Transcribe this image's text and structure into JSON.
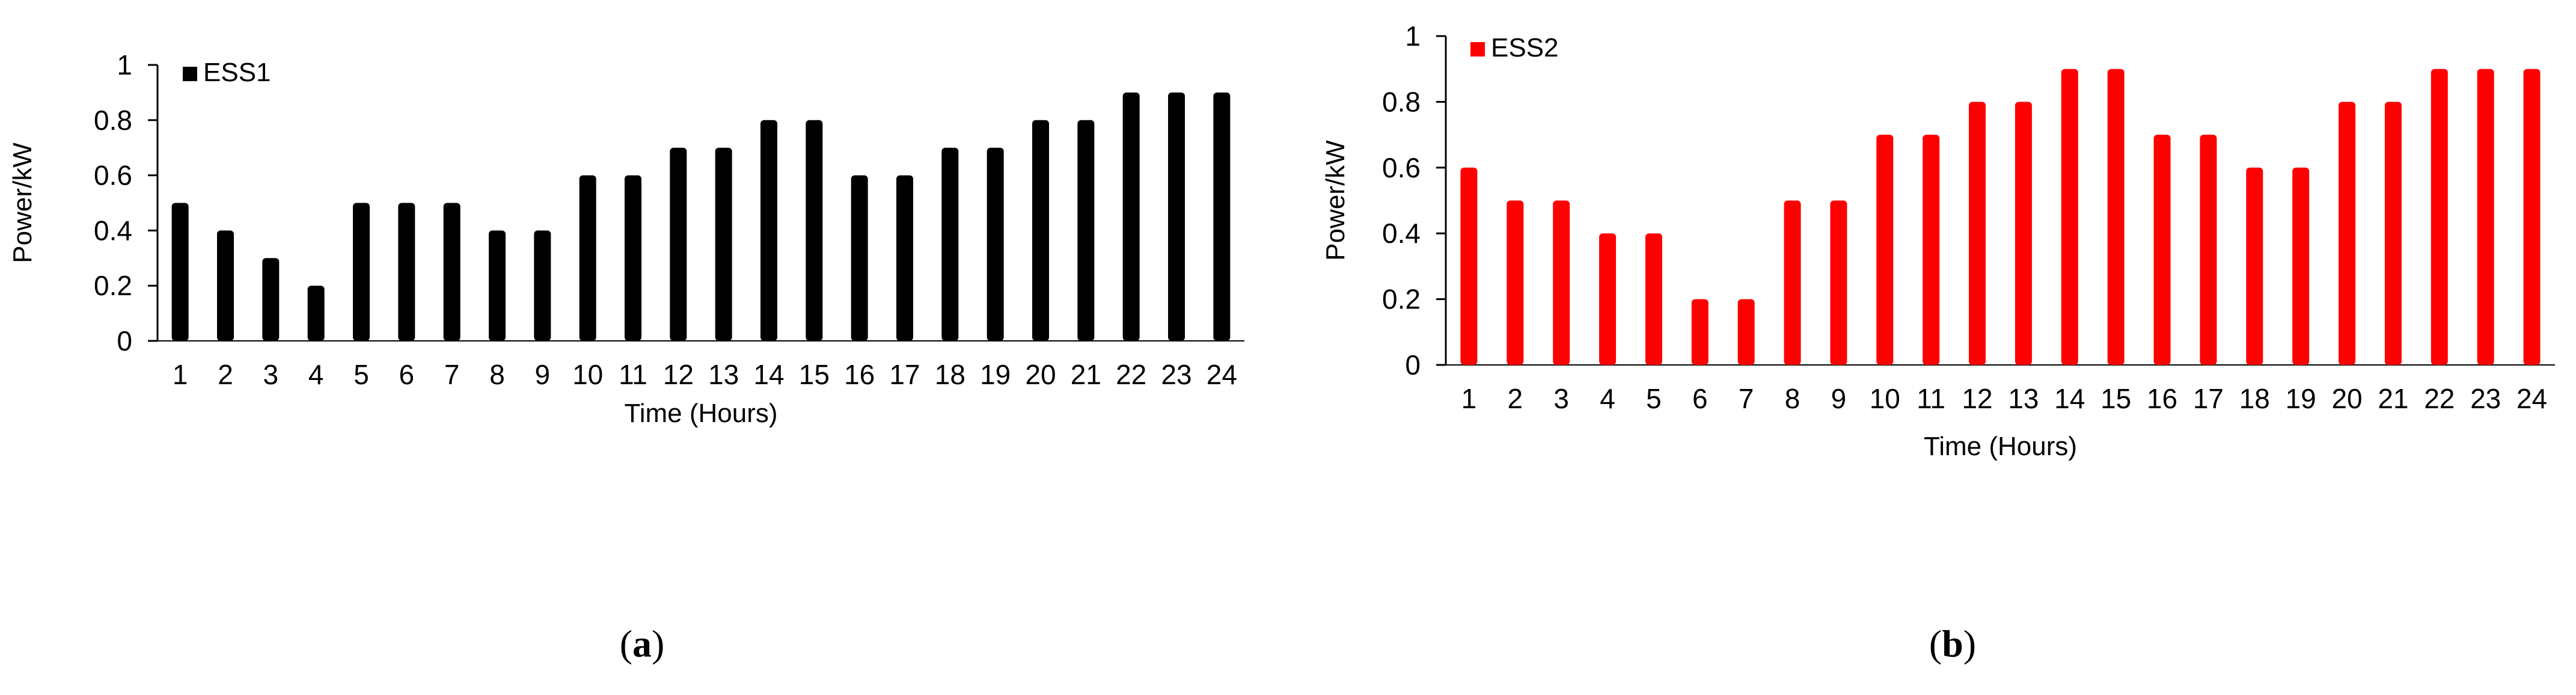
{
  "chart_data": [
    {
      "type": "bar",
      "categories": [
        "1",
        "2",
        "3",
        "4",
        "5",
        "6",
        "7",
        "8",
        "9",
        "10",
        "11",
        "12",
        "13",
        "14",
        "15",
        "16",
        "17",
        "18",
        "19",
        "20",
        "21",
        "22",
        "23",
        "24"
      ],
      "series": [
        {
          "name": "ESS1",
          "values": [
            0.5,
            0.4,
            0.3,
            0.2,
            0.5,
            0.5,
            0.5,
            0.4,
            0.4,
            0.6,
            0.6,
            0.7,
            0.7,
            0.8,
            0.8,
            0.6,
            0.6,
            0.7,
            0.7,
            0.8,
            0.8,
            0.9,
            0.9,
            0.9
          ],
          "color": "#000000"
        }
      ],
      "yticks": [
        "0",
        "0.2",
        "0.4",
        "0.6",
        "0.8",
        "1"
      ],
      "ylim": [
        0,
        1
      ],
      "xlabel": "Time  (Hours)",
      "ylabel": "Power/kW",
      "legend_position": "top-left",
      "grid": false,
      "caption": {
        "open": "(",
        "letter": "a",
        "close": ")"
      }
    },
    {
      "type": "bar",
      "categories": [
        "1",
        "2",
        "3",
        "4",
        "5",
        "6",
        "7",
        "8",
        "9",
        "10",
        "11",
        "12",
        "13",
        "14",
        "15",
        "16",
        "17",
        "18",
        "19",
        "20",
        "21",
        "22",
        "23",
        "24"
      ],
      "series": [
        {
          "name": "ESS2",
          "values": [
            0.6,
            0.5,
            0.5,
            0.4,
            0.4,
            0.2,
            0.2,
            0.5,
            0.5,
            0.7,
            0.7,
            0.8,
            0.8,
            0.9,
            0.9,
            0.7,
            0.7,
            0.6,
            0.6,
            0.8,
            0.8,
            0.9,
            0.9,
            0.9
          ],
          "color": "#ff0000"
        }
      ],
      "yticks": [
        "0",
        "0.2",
        "0.4",
        "0.6",
        "0.8",
        "1"
      ],
      "ylim": [
        0,
        1
      ],
      "xlabel": "Time  (Hours)",
      "ylabel": "Power/kW",
      "legend_position": "top-left",
      "grid": false,
      "caption": {
        "open": "(",
        "letter": "b",
        "close": ")"
      }
    }
  ]
}
